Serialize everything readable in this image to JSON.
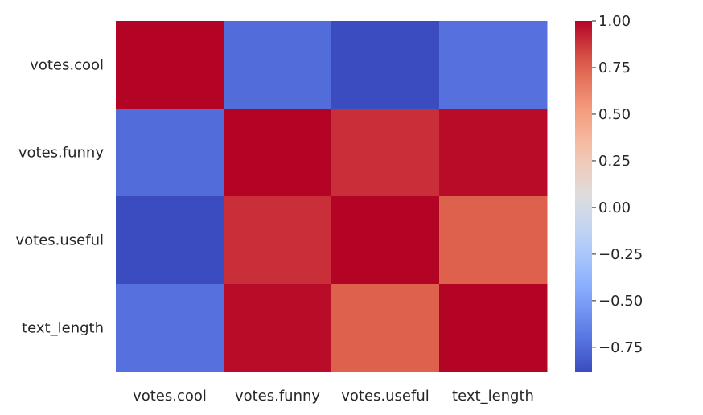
{
  "chart_data": {
    "type": "heatmap",
    "title": "",
    "xlabel": "",
    "ylabel": "",
    "colormap": "coolwarm",
    "x_labels": [
      "votes.cool",
      "votes.funny",
      "votes.useful",
      "text_length"
    ],
    "y_labels": [
      "votes.cool",
      "votes.funny",
      "votes.useful",
      "text_length"
    ],
    "values": [
      [
        1.0,
        -0.74,
        -0.88,
        -0.72
      ],
      [
        -0.74,
        1.0,
        0.89,
        0.98
      ],
      [
        -0.88,
        0.89,
        1.0,
        0.76
      ],
      [
        -0.72,
        0.98,
        0.76,
        1.0
      ]
    ],
    "vmin": -0.88,
    "vmax": 1.0,
    "colorbar": {
      "ticks": [
        1.0,
        0.75,
        0.5,
        0.25,
        0.0,
        -0.25,
        -0.5,
        -0.75
      ],
      "tick_labels": [
        "1.00",
        "0.75",
        "0.50",
        "0.25",
        "0.00",
        "−0.25",
        "−0.50",
        "−0.75"
      ]
    },
    "grid": false,
    "legend": "colorbar-right"
  }
}
